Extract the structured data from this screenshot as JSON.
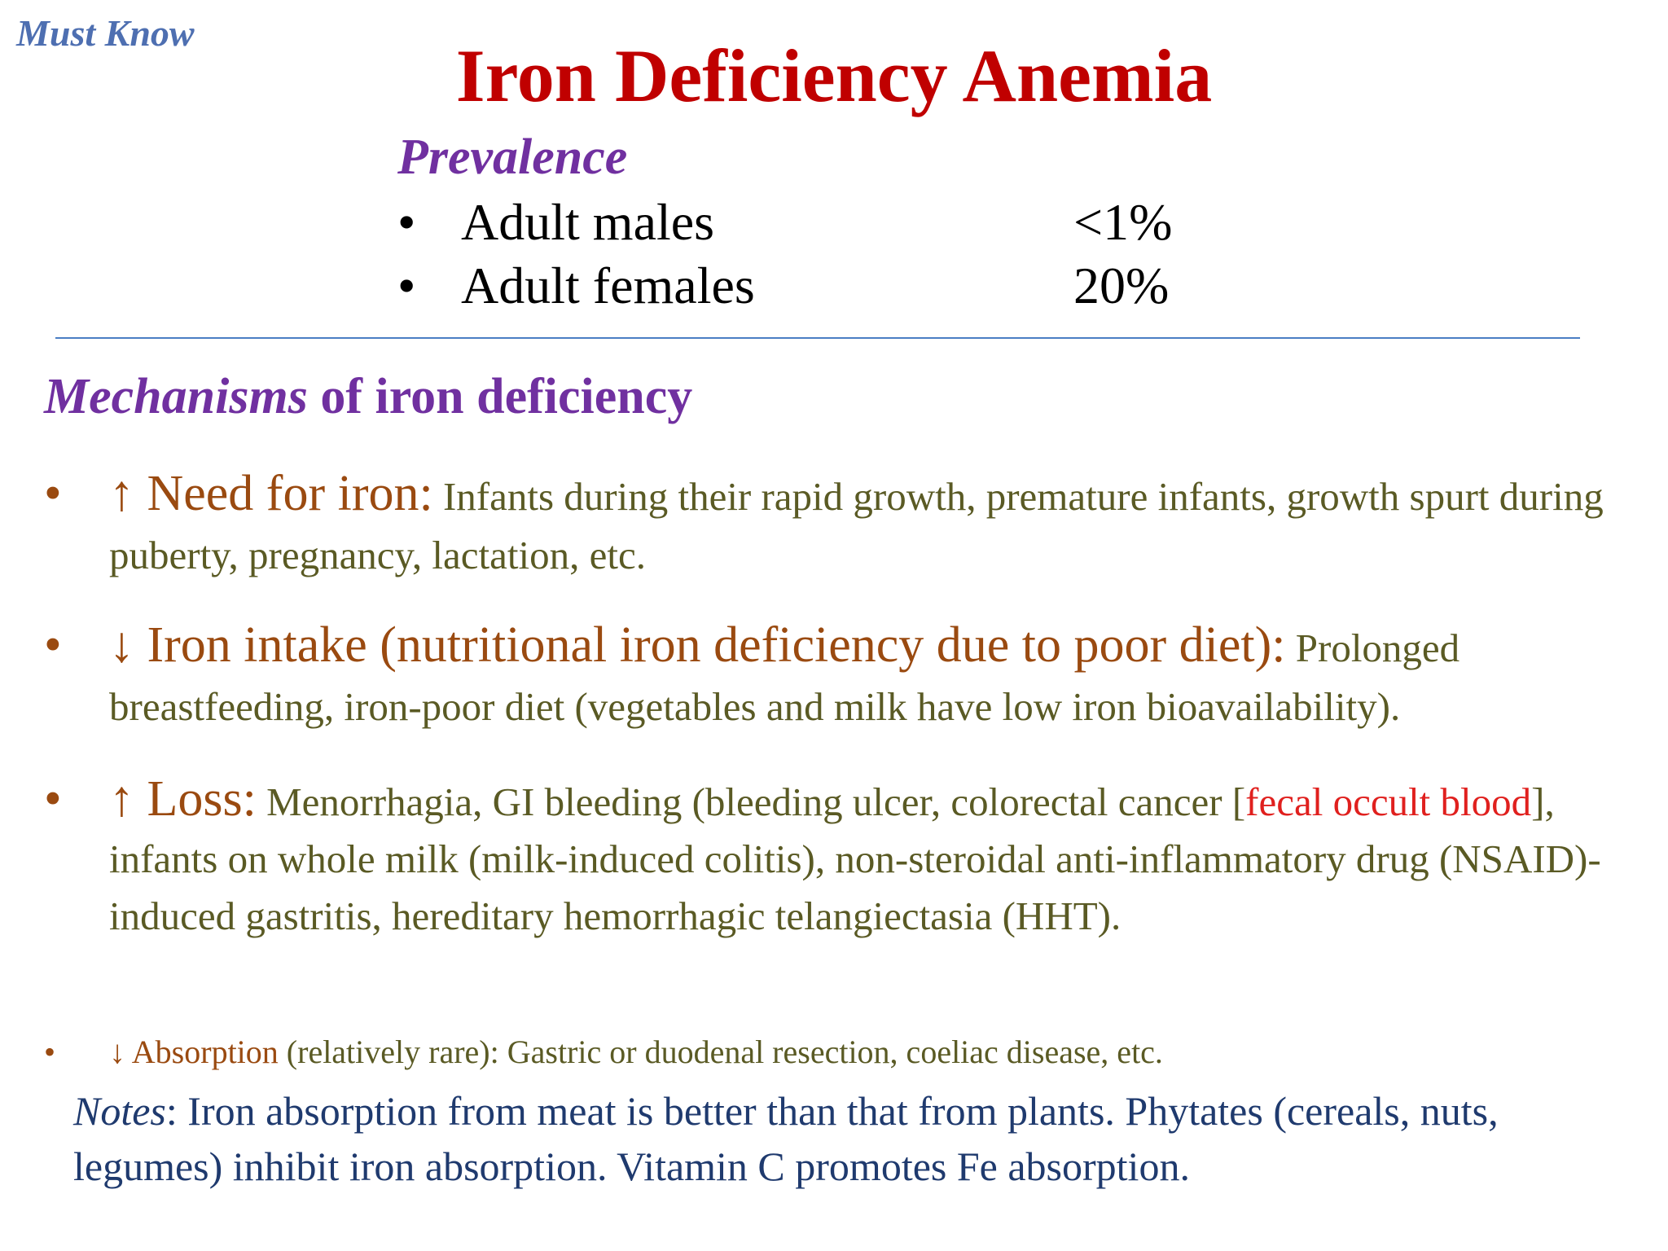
{
  "header": {
    "tag": "Must Know",
    "title": "Iron Deficiency Anemia"
  },
  "prevalence": {
    "heading": "Prevalence",
    "rows": [
      {
        "bullet": "•",
        "label": "Adult males",
        "value": "<1%"
      },
      {
        "bullet": "•",
        "label": "Adult females",
        "value": "20%"
      }
    ]
  },
  "mechanisms": {
    "heading_em": "Mechanisms",
    "heading_rest": " of iron deficiency",
    "items": [
      {
        "bullet": "•",
        "lead": "↑ Need for iron:",
        "text": " Infants during their rapid growth, premature infants, growth spurt during puberty, pregnancy, lactation, etc."
      },
      {
        "bullet": "•",
        "lead": "↓ Iron intake (nutritional iron deficiency due to poor diet):",
        "text": " Prolonged breastfeeding, iron-poor diet (vegetables and milk have low iron bioavailability)."
      },
      {
        "bullet": "•",
        "lead": "↑ Loss:",
        "text_before": " Menorrhagia, GI bleeding (bleeding ulcer, colorectal cancer [",
        "highlight": "fecal occult blood",
        "text_after": "], infants on whole milk (milk-induced colitis), non-steroidal anti-inflammatory drug (NSAID)-induced gastritis, hereditary hemorrhagic telangiectasia (HHT)."
      },
      {
        "bullet": "•",
        "lead": "↓ Absorption",
        "text": " (relatively rare): Gastric or duodenal resection, coeliac disease, etc."
      }
    ]
  },
  "notes": {
    "label": "Notes",
    "text": ": Iron absorption from meat is better than that from plants.  Phytates (cereals, nuts, legumes) inhibit iron absorption. Vitamin C promotes Fe absorption."
  },
  "colors": {
    "title": "#c00000",
    "heading": "#7030a0",
    "lead": "#9a4a10",
    "body": "#5a5a24",
    "highlight": "#e0201e",
    "notes": "#1f3a6e",
    "tag": "#4e6fb1"
  }
}
